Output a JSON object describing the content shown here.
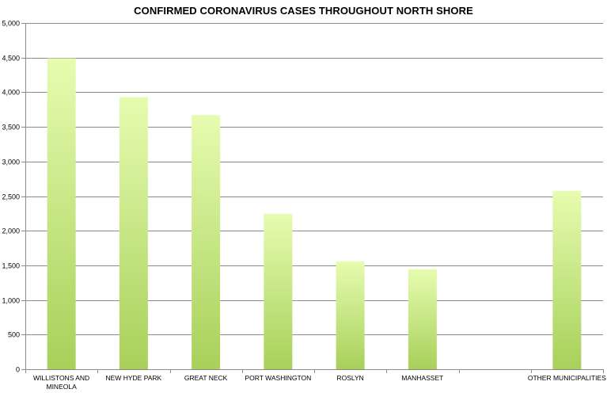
{
  "chart_data": {
    "type": "bar",
    "title": "CONFIRMED CORONAVIRUS CASES THROUGHOUT NORTH SHORE",
    "categories": [
      [
        "WILLISTONS AND",
        "MINEOLA"
      ],
      [
        "NEW HYDE PARK"
      ],
      [
        "GREAT NECK"
      ],
      [
        "PORT WASHINGTON"
      ],
      [
        "ROSLYN"
      ],
      [
        "MANHASSET"
      ],
      [
        ""
      ],
      [
        "OTHER MUNICIPALITIES"
      ]
    ],
    "values": [
      4490,
      3930,
      3670,
      2245,
      1560,
      1445,
      null,
      2575
    ],
    "ylim": [
      0,
      5000
    ],
    "yticks": [
      0,
      500,
      1000,
      1500,
      2000,
      2500,
      3000,
      3500,
      4000,
      4500,
      5000
    ],
    "ytick_labels": [
      "0",
      "500",
      "1,000",
      "1,500",
      "2,000",
      "2,500",
      "3,000",
      "3,500",
      "4,000",
      "4,500",
      "5,000"
    ],
    "grid": true,
    "legend": "none",
    "colors": {
      "bar_top": "#e6fcb0",
      "bar_bottom": "#a8d05a",
      "grid": "#8c8c8c",
      "axis": "#8c8c8c"
    }
  }
}
